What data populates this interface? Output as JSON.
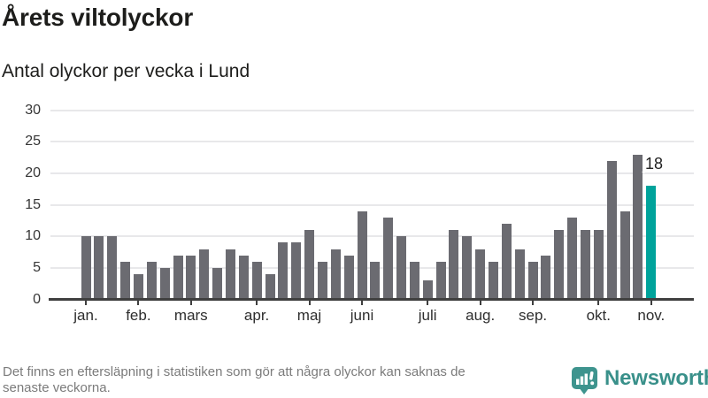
{
  "header": {
    "title": "Årets viltolyckor",
    "subtitle": "Antal olyckor per vecka i Lund"
  },
  "chart_data": {
    "type": "bar",
    "title": "Årets viltolyckor",
    "subtitle": "Antal olyckor per vecka i Lund",
    "xlabel": "",
    "ylabel": "",
    "ylim": [
      0,
      30
    ],
    "y_ticks": [
      0,
      5,
      10,
      15,
      20,
      25,
      30
    ],
    "grid": true,
    "legend_position": "none",
    "values": [
      10,
      10,
      10,
      6,
      4,
      6,
      5,
      7,
      7,
      8,
      5,
      8,
      7,
      6,
      4,
      9,
      9,
      11,
      6,
      8,
      7,
      14,
      6,
      13,
      10,
      6,
      3,
      6,
      11,
      10,
      8,
      6,
      12,
      8,
      6,
      7,
      11,
      13,
      11,
      11,
      22,
      14,
      23,
      18
    ],
    "x_tick_labels": [
      "jan.",
      "feb.",
      "mars",
      "apr.",
      "maj",
      "juni",
      "juli",
      "aug.",
      "sep.",
      "okt.",
      "nov."
    ],
    "x_tick_bar_indices": [
      0,
      4,
      8,
      13,
      17,
      21,
      26,
      30,
      34,
      39,
      43
    ],
    "bar_color": "#6b6b71",
    "highlight": {
      "index": 43,
      "label": "18",
      "color": "#00a39b"
    }
  },
  "footer": {
    "note_line1": "Det finns en eftersläpning i statistiken som gör att några olyckor kan saknas de",
    "note_line2": "senaste veckorna.",
    "brand_name": "Newsworthy"
  },
  "colors": {
    "accent_teal": "#00a39b",
    "bar_gray": "#6b6b71",
    "brand_teal": "#39908a",
    "brand_icon_teal": "#3e948e",
    "grid": "#e8e8ea",
    "axis": "#3f3f3f",
    "text_dark": "#1d1d1b",
    "text_muted": "#7b7b7b"
  }
}
